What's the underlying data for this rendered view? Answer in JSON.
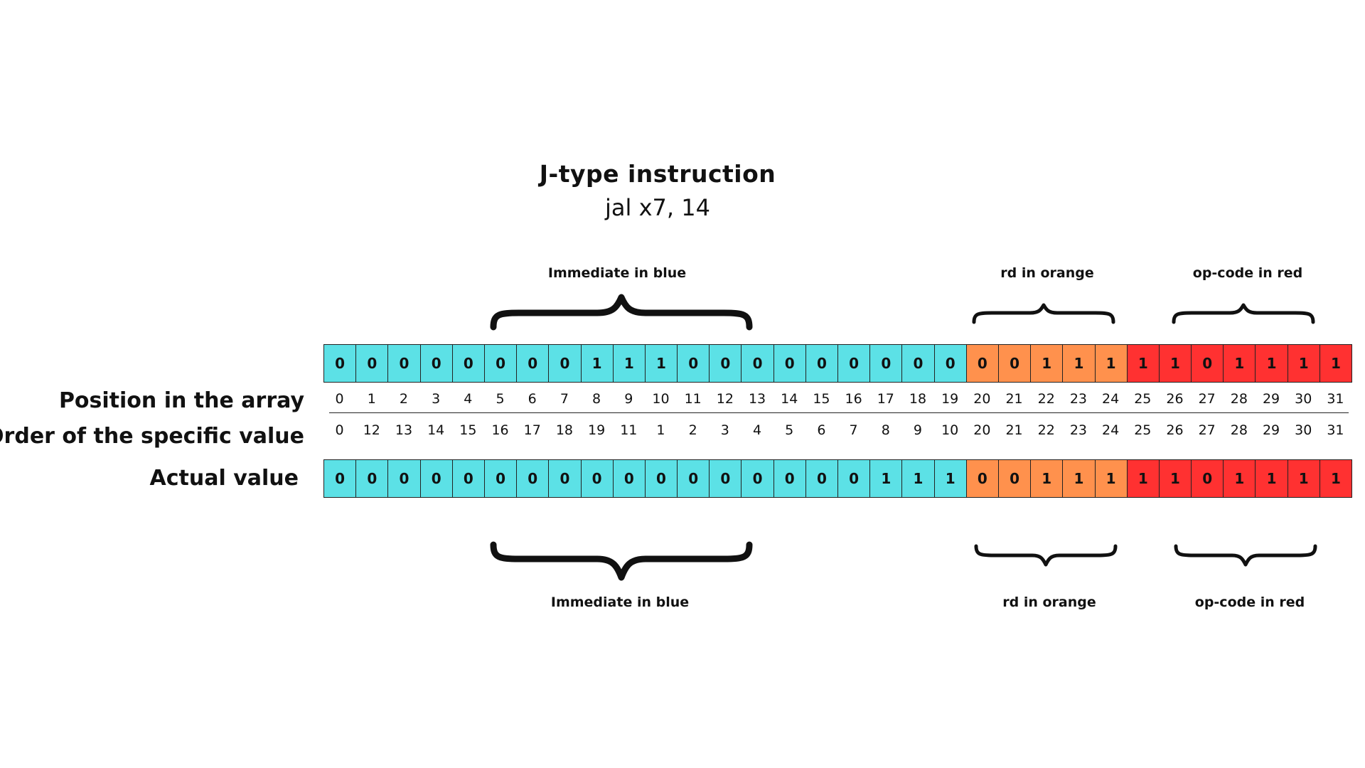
{
  "header": {
    "title": "J-type instruction",
    "subtitle": "jal x7, 14"
  },
  "labels": {
    "position": "Position in the array",
    "order": "Order of the specific value",
    "actual": "Actual value"
  },
  "annotations_top": {
    "immediate": "Immediate in blue",
    "rd": "rd in orange",
    "opcode": "op-code in red"
  },
  "annotations_bottom": {
    "immediate": "Immediate in blue",
    "rd": "rd in orange",
    "opcode": "op-code in red"
  },
  "colors": {
    "immediate": "#5ce1e6",
    "rd": "#ff914d",
    "opcode": "#ff3131"
  },
  "segments": [
    {
      "field": "immediate",
      "from": 0,
      "to": 19
    },
    {
      "field": "rd",
      "from": 20,
      "to": 24
    },
    {
      "field": "opcode",
      "from": 25,
      "to": 31
    }
  ],
  "instruction_bits": [
    "0",
    "0",
    "0",
    "0",
    "0",
    "0",
    "0",
    "0",
    "1",
    "1",
    "1",
    "0",
    "0",
    "0",
    "0",
    "0",
    "0",
    "0",
    "0",
    "0",
    "0",
    "0",
    "1",
    "1",
    "1",
    "1",
    "1",
    "0",
    "1",
    "1",
    "1",
    "1"
  ],
  "positions": [
    "0",
    "1",
    "2",
    "3",
    "4",
    "5",
    "6",
    "7",
    "8",
    "9",
    "10",
    "11",
    "12",
    "13",
    "14",
    "15",
    "16",
    "17",
    "18",
    "19",
    "20",
    "21",
    "22",
    "23",
    "24",
    "25",
    "26",
    "27",
    "28",
    "29",
    "30",
    "31"
  ],
  "orders": [
    "0",
    "12",
    "13",
    "14",
    "15",
    "16",
    "17",
    "18",
    "19",
    "11",
    "1",
    "2",
    "3",
    "4",
    "5",
    "6",
    "7",
    "8",
    "9",
    "10",
    "20",
    "21",
    "22",
    "23",
    "24",
    "25",
    "26",
    "27",
    "28",
    "29",
    "30",
    "31"
  ],
  "actual_bits": [
    "0",
    "0",
    "0",
    "0",
    "0",
    "0",
    "0",
    "0",
    "0",
    "0",
    "0",
    "0",
    "0",
    "0",
    "0",
    "0",
    "0",
    "1",
    "1",
    "1",
    "0",
    "0",
    "1",
    "1",
    "1",
    "1",
    "1",
    "0",
    "1",
    "1",
    "1",
    "1"
  ]
}
